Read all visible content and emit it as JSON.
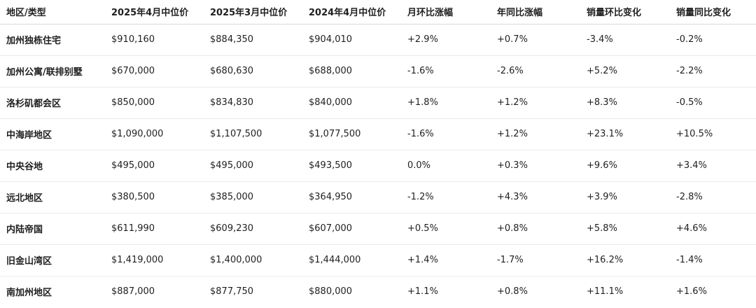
{
  "table": {
    "headers": [
      "地区/类型",
      "2025年4月中位价",
      "2025年3月中位价",
      "2024年4月中位价",
      "月环比涨幅",
      "年同比涨幅",
      "销量环比变化",
      "销量同比变化"
    ],
    "rows": [
      [
        "加州独栋住宅",
        "$910,160",
        "$884,350",
        "$904,010",
        "+2.9%",
        "+0.7%",
        "-3.4%",
        "-0.2%"
      ],
      [
        "加州公寓/联排别墅",
        "$670,000",
        "$680,630",
        "$688,000",
        "-1.6%",
        "-2.6%",
        "+5.2%",
        "-2.2%"
      ],
      [
        "洛杉矶都会区",
        "$850,000",
        "$834,830",
        "$840,000",
        "+1.8%",
        "+1.2%",
        "+8.3%",
        "-0.5%"
      ],
      [
        "中海岸地区",
        "$1,090,000",
        "$1,107,500",
        "$1,077,500",
        "-1.6%",
        "+1.2%",
        "+23.1%",
        "+10.5%"
      ],
      [
        "中央谷地",
        "$495,000",
        "$495,000",
        "$493,500",
        "0.0%",
        "+0.3%",
        "+9.6%",
        "+3.4%"
      ],
      [
        "远北地区",
        "$380,500",
        "$385,000",
        "$364,950",
        "-1.2%",
        "+4.3%",
        "+3.9%",
        "-2.8%"
      ],
      [
        "内陆帝国",
        "$611,990",
        "$609,230",
        "$607,000",
        "+0.5%",
        "+0.8%",
        "+5.8%",
        "+4.6%"
      ],
      [
        "旧金山湾区",
        "$1,419,000",
        "$1,400,000",
        "$1,444,000",
        "+1.4%",
        "-1.7%",
        "+16.2%",
        "-1.4%"
      ],
      [
        "南加州地区",
        "$887,000",
        "$877,750",
        "$880,000",
        "+1.1%",
        "+0.8%",
        "+11.1%",
        "+1.6%"
      ]
    ]
  }
}
